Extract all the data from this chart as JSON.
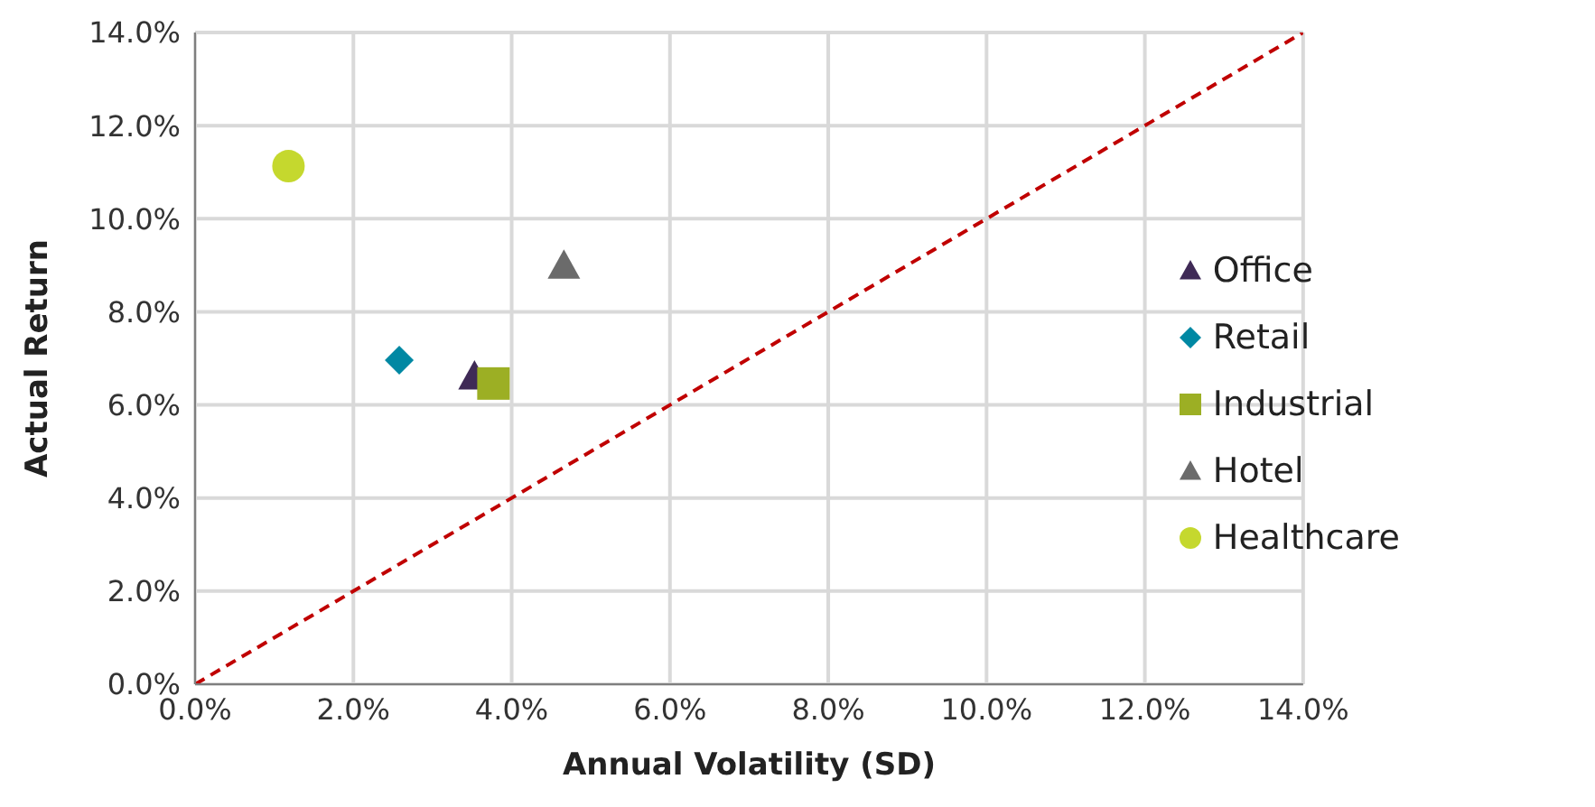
{
  "chart_data": {
    "type": "scatter",
    "xlabel": "Annual Volatility (SD)",
    "ylabel": "Actual Return",
    "xlim": [
      0,
      14
    ],
    "ylim": [
      0,
      14
    ],
    "xticks": [
      {
        "value": 0,
        "label": "0.0%"
      },
      {
        "value": 2,
        "label": "2.0%"
      },
      {
        "value": 4,
        "label": "4.0%"
      },
      {
        "value": 6,
        "label": "6.0%"
      },
      {
        "value": 8,
        "label": "8.0%"
      },
      {
        "value": 10,
        "label": "10.0%"
      },
      {
        "value": 12,
        "label": "12.0%"
      },
      {
        "value": 14,
        "label": "14.0%"
      }
    ],
    "yticks": [
      {
        "value": 0,
        "label": "0.0%"
      },
      {
        "value": 2,
        "label": "2.0%"
      },
      {
        "value": 4,
        "label": "4.0%"
      },
      {
        "value": 6,
        "label": "6.0%"
      },
      {
        "value": 8,
        "label": "8.0%"
      },
      {
        "value": 10,
        "label": "10.0%"
      },
      {
        "value": 12,
        "label": "12.0%"
      },
      {
        "value": 14,
        "label": "14.0%"
      }
    ],
    "grid": true,
    "legend": "right",
    "series": [
      {
        "name": "Office",
        "color": "#3f2a56",
        "marker": "triangle",
        "x": [
          3.53
        ],
        "values": [
          6.61
        ]
      },
      {
        "name": "Retail",
        "color": "#0088a3",
        "marker": "diamond",
        "x": [
          2.58
        ],
        "values": [
          6.96
        ]
      },
      {
        "name": "Industrial",
        "color": "#9caf24",
        "marker": "square",
        "x": [
          3.77
        ],
        "values": [
          6.46
        ]
      },
      {
        "name": "Hotel",
        "color": "#6b6b6b",
        "marker": "triangle",
        "x": [
          4.66
        ],
        "values": [
          8.99
        ]
      },
      {
        "name": "Healthcare",
        "color": "#c5d82e",
        "marker": "circle",
        "x": [
          1.18
        ],
        "values": [
          11.13
        ]
      },
      {
        "type": "line",
        "color": "#c00000",
        "line_style": "dashed",
        "marker": "none",
        "x": [
          0,
          14
        ],
        "values": [
          0,
          14
        ]
      }
    ]
  }
}
